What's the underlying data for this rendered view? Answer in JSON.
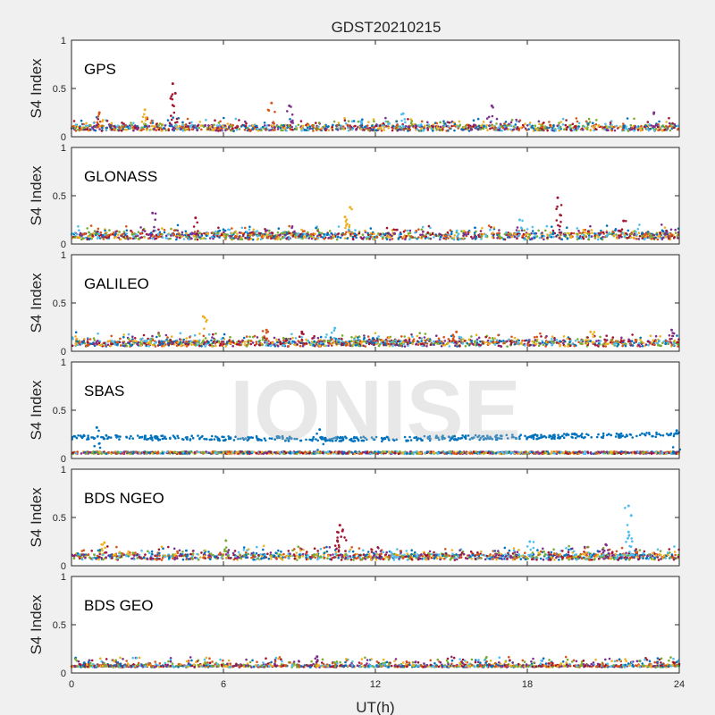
{
  "figure": {
    "title": "GDST20210215",
    "xlabel": "UT(h)",
    "watermark": "IONISE"
  },
  "colors": [
    "#0072bd",
    "#d95319",
    "#edb120",
    "#7e2f8e",
    "#77ac30",
    "#4dbeee",
    "#a2142f"
  ],
  "chart_data": [
    {
      "type": "scatter",
      "panel": "GPS",
      "ylabel": "S4 Index",
      "xlim": [
        0,
        24
      ],
      "ylim": [
        0,
        1
      ],
      "xticks": [
        0,
        6,
        12,
        18,
        24
      ],
      "yticks": [
        0,
        0.5,
        1
      ],
      "baseline": 0.09,
      "spread": 0.03,
      "peaks": [
        {
          "x": 4.0,
          "y": 0.55,
          "color": "#a2142f"
        },
        {
          "x": 4.1,
          "y": 0.45,
          "color": "#a2142f"
        },
        {
          "x": 7.9,
          "y": 0.35,
          "color": "#d95319"
        },
        {
          "x": 8.6,
          "y": 0.32,
          "color": "#7e2f8e"
        },
        {
          "x": 16.6,
          "y": 0.32,
          "color": "#7e2f8e"
        },
        {
          "x": 2.9,
          "y": 0.28,
          "color": "#edb120"
        },
        {
          "x": 1.1,
          "y": 0.25,
          "color": "#d95319"
        },
        {
          "x": 23.0,
          "y": 0.25,
          "color": "#7e2f8e"
        },
        {
          "x": 13.1,
          "y": 0.24,
          "color": "#4dbeee"
        }
      ]
    },
    {
      "type": "scatter",
      "panel": "GLONASS",
      "ylabel": "S4 Index",
      "xlim": [
        0,
        24
      ],
      "ylim": [
        0,
        1
      ],
      "xticks": [
        0,
        6,
        12,
        18,
        24
      ],
      "yticks": [
        0,
        0.5,
        1
      ],
      "baseline": 0.08,
      "spread": 0.035,
      "peaks": [
        {
          "x": 19.2,
          "y": 0.48,
          "color": "#a2142f"
        },
        {
          "x": 11.0,
          "y": 0.38,
          "color": "#edb120"
        },
        {
          "x": 3.2,
          "y": 0.32,
          "color": "#7e2f8e"
        },
        {
          "x": 19.3,
          "y": 0.3,
          "color": "#a2142f"
        },
        {
          "x": 10.8,
          "y": 0.28,
          "color": "#edb120"
        },
        {
          "x": 4.9,
          "y": 0.27,
          "color": "#a2142f"
        },
        {
          "x": 17.7,
          "y": 0.25,
          "color": "#4dbeee"
        },
        {
          "x": 21.8,
          "y": 0.24,
          "color": "#a2142f"
        }
      ]
    },
    {
      "type": "scatter",
      "panel": "GALILEO",
      "ylabel": "S4 Index",
      "xlim": [
        0,
        24
      ],
      "ylim": [
        0,
        1
      ],
      "xticks": [
        0,
        6,
        12,
        18,
        24
      ],
      "yticks": [
        0,
        0.5,
        1
      ],
      "baseline": 0.08,
      "spread": 0.03,
      "peaks": [
        {
          "x": 5.2,
          "y": 0.36,
          "color": "#edb120"
        },
        {
          "x": 7.7,
          "y": 0.22,
          "color": "#d95319"
        },
        {
          "x": 9.1,
          "y": 0.2,
          "color": "#a2142f"
        },
        {
          "x": 10.4,
          "y": 0.24,
          "color": "#4dbeee"
        },
        {
          "x": 23.7,
          "y": 0.22,
          "color": "#7e2f8e"
        },
        {
          "x": 15.2,
          "y": 0.2,
          "color": "#d95319"
        },
        {
          "x": 20.5,
          "y": 0.2,
          "color": "#edb120"
        }
      ]
    },
    {
      "type": "scatter",
      "panel": "SBAS",
      "ylabel": "S4 Index",
      "xlim": [
        0,
        24
      ],
      "ylim": [
        0,
        1
      ],
      "xticks": [
        0,
        6,
        12,
        18,
        24
      ],
      "yticks": [
        0,
        0.5,
        1
      ],
      "baseline": 0.06,
      "spread": 0.012,
      "band": {
        "color": "#0072bd",
        "y_start": 0.22,
        "y_mid": 0.2,
        "y_end": 0.25,
        "spread": 0.025
      },
      "peaks": [
        {
          "x": 1.0,
          "y": 0.32,
          "color": "#0072bd"
        },
        {
          "x": 9.8,
          "y": 0.3,
          "color": "#0072bd"
        },
        {
          "x": 23.9,
          "y": 0.29,
          "color": "#0072bd"
        }
      ]
    },
    {
      "type": "scatter",
      "panel": "BDS NGEO",
      "ylabel": "S4 Index",
      "xlim": [
        0,
        24
      ],
      "ylim": [
        0,
        1
      ],
      "xticks": [
        0,
        6,
        12,
        18,
        24
      ],
      "yticks": [
        0,
        0.5,
        1
      ],
      "baseline": 0.09,
      "spread": 0.03,
      "peaks": [
        {
          "x": 22.0,
          "y": 0.62,
          "color": "#4dbeee"
        },
        {
          "x": 22.1,
          "y": 0.52,
          "color": "#4dbeee"
        },
        {
          "x": 22.0,
          "y": 0.35,
          "color": "#4dbeee"
        },
        {
          "x": 10.6,
          "y": 0.42,
          "color": "#a2142f"
        },
        {
          "x": 10.7,
          "y": 0.36,
          "color": "#a2142f"
        },
        {
          "x": 10.5,
          "y": 0.26,
          "color": "#a2142f"
        },
        {
          "x": 6.1,
          "y": 0.26,
          "color": "#77ac30"
        },
        {
          "x": 18.1,
          "y": 0.25,
          "color": "#4dbeee"
        },
        {
          "x": 1.3,
          "y": 0.24,
          "color": "#edb120"
        },
        {
          "x": 21.1,
          "y": 0.22,
          "color": "#7e2f8e"
        }
      ]
    },
    {
      "type": "scatter",
      "panel": "BDS GEO",
      "ylabel": "S4 Index",
      "xlim": [
        0,
        24
      ],
      "ylim": [
        0,
        1
      ],
      "xticks": [
        0,
        6,
        12,
        18,
        24
      ],
      "yticks": [
        0,
        0.5,
        1
      ],
      "baseline": 0.07,
      "spread": 0.01,
      "peaks": [
        {
          "x": 9.7,
          "y": 0.17,
          "color": "#7e2f8e"
        }
      ]
    }
  ]
}
